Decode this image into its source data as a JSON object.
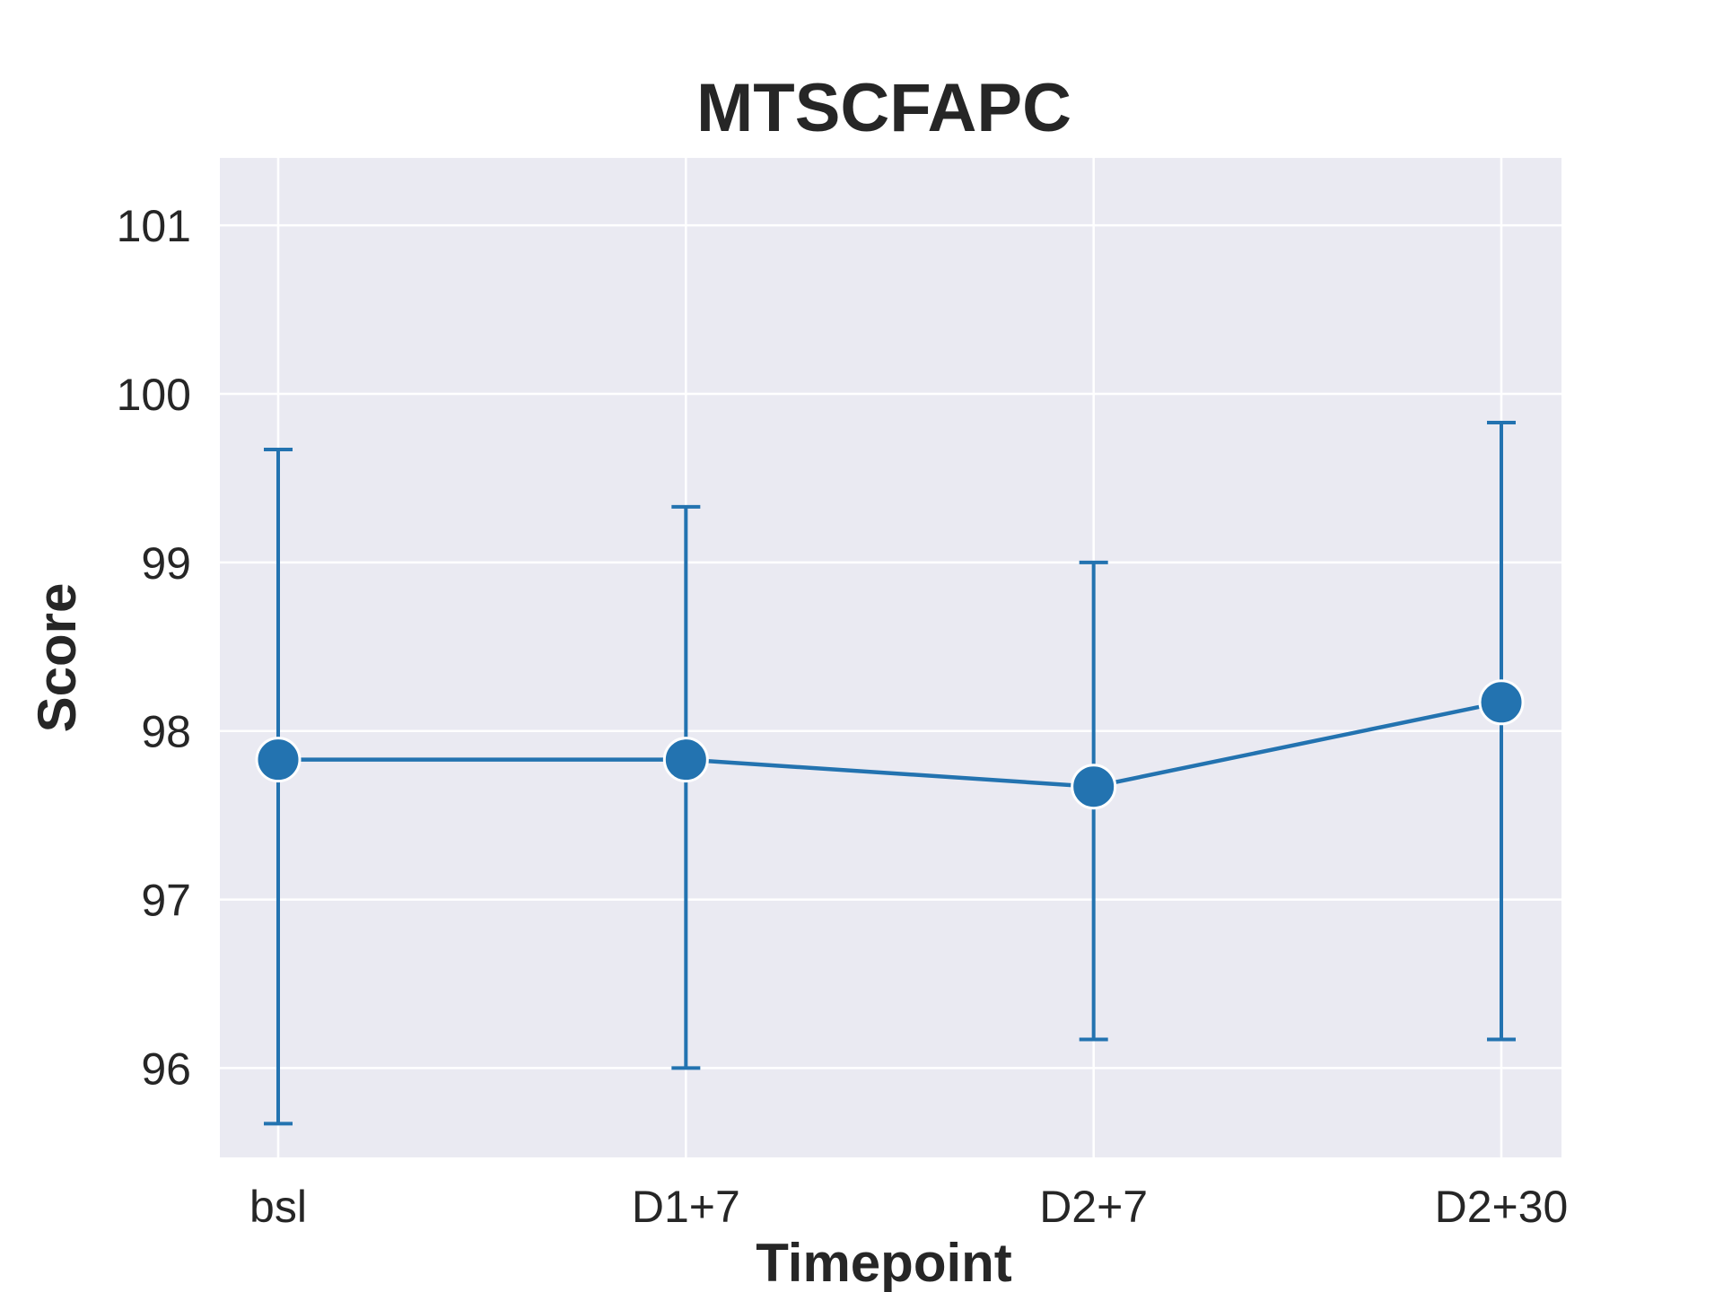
{
  "chart_data": {
    "type": "line",
    "title": "MTSCFAPC",
    "xlabel": "Timepoint",
    "ylabel": "Score",
    "categories": [
      "bsl",
      "D1+7",
      "D2+7",
      "D2+30"
    ],
    "series": [
      {
        "values": [
          97.83,
          97.83,
          97.67,
          98.17
        ],
        "error_low": [
          95.67,
          96.0,
          96.17,
          96.17
        ],
        "error_high": [
          99.67,
          99.33,
          99.0,
          99.83
        ],
        "color": "#2373b0"
      }
    ],
    "ylim": [
      95.47,
      101.4
    ],
    "yticks": [
      96,
      97,
      98,
      99,
      100,
      101
    ],
    "grid": true,
    "background": "#eaeaf2",
    "grid_color": "#ffffff"
  }
}
